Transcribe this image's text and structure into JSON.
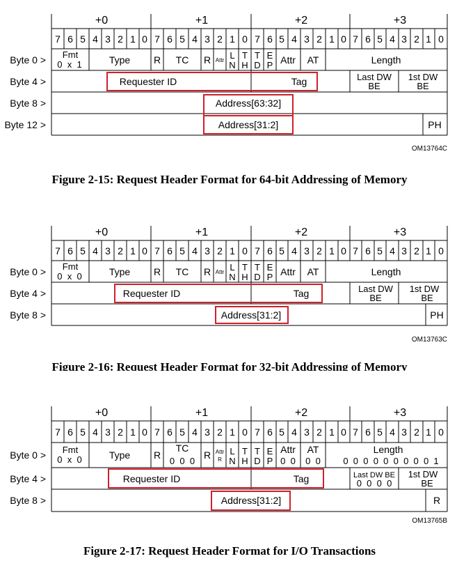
{
  "byte_groups": [
    "+0",
    "+1",
    "+2",
    "+3"
  ],
  "bit_labels": [
    "7",
    "6",
    "5",
    "4",
    "3",
    "2",
    "1",
    "0",
    "7",
    "6",
    "5",
    "4",
    "3",
    "2",
    "1",
    "0",
    "7",
    "6",
    "5",
    "4",
    "3",
    "2",
    "1",
    "0",
    "7",
    "6",
    "5",
    "4",
    "3",
    "2",
    "1",
    "0"
  ],
  "figures": [
    {
      "caption": "Figure 2-15:  Request Header Format for 64-bit Addressing of Memory",
      "code": "OM13764C",
      "row_labels": [
        "Byte 0 >",
        "Byte 4 >",
        "Byte 8 >",
        "Byte 12 >"
      ],
      "fields": {
        "fmt": "Fmt",
        "fmt_val": "0  x  1",
        "type": "Type",
        "r1": "R",
        "tc": "TC",
        "tc_val": "",
        "r2": "R",
        "attr_small": "Attr",
        "attr_small_val": "",
        "ln": [
          "L",
          "N"
        ],
        "th": [
          "T",
          "H"
        ],
        "td": [
          "T",
          "D"
        ],
        "ep": [
          "E",
          "P"
        ],
        "attr": "Attr",
        "at": "AT",
        "at_val": "",
        "length": "Length",
        "length_val": "",
        "requester_id": "Requester ID",
        "tag": "Tag",
        "last_dw": [
          "Last DW",
          "BE"
        ],
        "last_dw_val": "",
        "first_dw": [
          "1st DW",
          "BE"
        ],
        "addr_hi": "Address[63:32]",
        "addr_lo": "Address[31:2]",
        "ph": "PH"
      }
    },
    {
      "caption": "Figure 2-16:  Request Header Format for 32-bit Addressing of Memory",
      "code": "OM13763C",
      "row_labels": [
        "Byte 0 >",
        "Byte 4 >",
        "Byte 8 >"
      ],
      "fields": {
        "fmt": "Fmt",
        "fmt_val": "0  x  0",
        "type": "Type",
        "r1": "R",
        "tc": "TC",
        "tc_val": "",
        "r2": "R",
        "attr_small": "Attr",
        "attr_small_val": "",
        "ln": [
          "L",
          "N"
        ],
        "th": [
          "T",
          "H"
        ],
        "td": [
          "T",
          "D"
        ],
        "ep": [
          "E",
          "P"
        ],
        "attr": "Attr",
        "at": "AT",
        "at_val": "",
        "length": "Length",
        "length_val": "",
        "requester_id": "Requester ID",
        "tag": "Tag",
        "last_dw": [
          "Last DW",
          "BE"
        ],
        "last_dw_val": "",
        "first_dw": [
          "1st DW",
          "BE"
        ],
        "addr_lo": "Address[31:2]",
        "ph": "PH"
      }
    },
    {
      "caption": "Figure 2-17:  Request Header Format for I/O Transactions",
      "code": "OM13765B",
      "row_labels": [
        "Byte 0 >",
        "Byte 4 >",
        "Byte 8 >"
      ],
      "fields": {
        "fmt": "Fmt",
        "fmt_val": "0  x  0",
        "type": "Type",
        "r1": "R",
        "tc": "TC",
        "tc_val": "0  0  0",
        "r2": "R",
        "attr_small": "Attr",
        "attr_small_val": "R",
        "ln": [
          "L",
          "N"
        ],
        "th": [
          "T",
          "H"
        ],
        "td": [
          "T",
          "D"
        ],
        "ep": [
          "E",
          "P"
        ],
        "attr": "Attr",
        "attr_val": "0  0",
        "at": "AT",
        "at_val": "0  0",
        "length": "Length",
        "length_val": "0  0  0  0  0  0  0  0  0  1",
        "requester_id": "Requester ID",
        "tag": "Tag",
        "last_dw": [
          "Last DW BE"
        ],
        "last_dw_val": "0  0  0  0",
        "first_dw": [
          "1st DW",
          "BE"
        ],
        "addr_lo": "Address[31:2]",
        "ph": "R"
      }
    }
  ]
}
